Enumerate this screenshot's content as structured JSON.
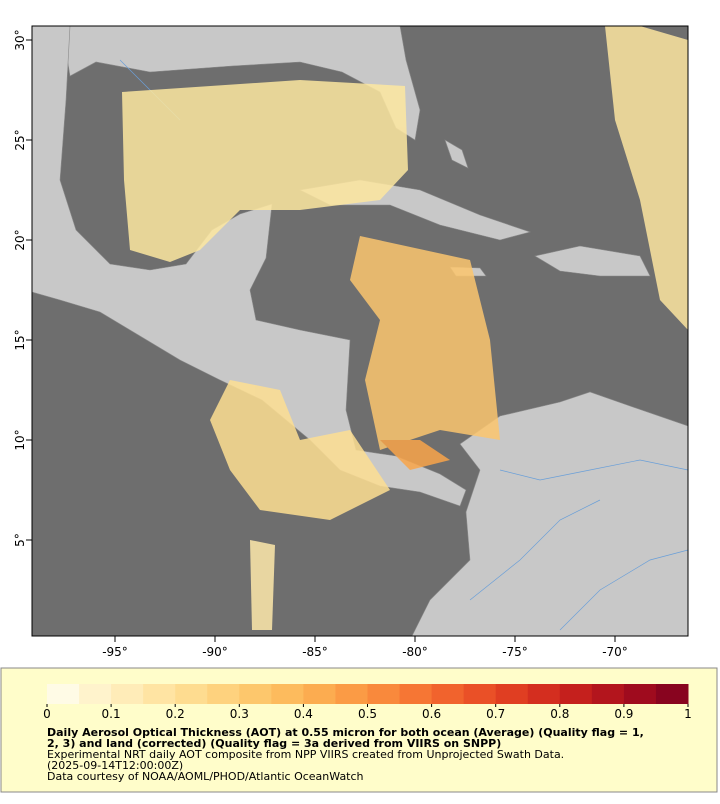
{
  "map": {
    "xlim": [
      -99.15,
      -66.35
    ],
    "ylim": [
      0.2,
      30.7
    ],
    "xticks": [
      {
        "value": -95,
        "label": "-95°"
      },
      {
        "value": -90,
        "label": "-90°"
      },
      {
        "value": -85,
        "label": "-85°"
      },
      {
        "value": -80,
        "label": "-80°"
      },
      {
        "value": -75,
        "label": "-75°"
      },
      {
        "value": -70,
        "label": "-70°"
      }
    ],
    "yticks": [
      {
        "value": 30,
        "label": "30°"
      },
      {
        "value": 25,
        "label": "25°"
      },
      {
        "value": 20,
        "label": "20°"
      },
      {
        "value": 15,
        "label": "15°"
      },
      {
        "value": 10,
        "label": "10°"
      },
      {
        "value": 5,
        "label": "5°"
      }
    ]
  },
  "colorbar": {
    "lim": [
      0,
      1
    ],
    "ticks": [
      0,
      0.1,
      0.2,
      0.3,
      0.4,
      0.5,
      0.6,
      0.7,
      0.8,
      0.9,
      1
    ],
    "colors": [
      "#fffbe6",
      "#fff3cc",
      "#ffecb8",
      "#ffe4a3",
      "#fedc90",
      "#fed27e",
      "#fdc76c",
      "#fdbb5d",
      "#fcac50",
      "#fb9b45",
      "#f9893c",
      "#f67634",
      "#f1632d",
      "#ea5027",
      "#e03e22",
      "#d42e1f",
      "#c5201d",
      "#b3151d",
      "#9f0b1e",
      "#88041f"
    ]
  },
  "caption": {
    "bold_lines": [
      "Daily Aerosol Optical Thickness (AOT) at 0.55 micron for both ocean (Average) (Quality flag = 1,",
      "2, 3) and land (corrected) (Quality flag = 3a derived from VIIRS on SNPP)"
    ],
    "lines": [
      "Experimental NRT daily AOT composite from NPP VIIRS created from Unprojected Swath Data.",
      "(2025-09-14T12:00:00Z)",
      "Data courtesy of NOAA/AOML/PHOD/Atlantic OceanWatch"
    ]
  }
}
